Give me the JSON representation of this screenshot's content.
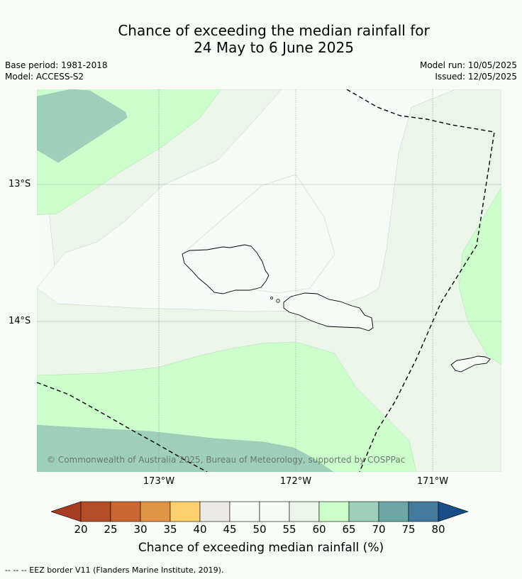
{
  "title": {
    "line1": "Chance of exceeding the median rainfall for",
    "line2": "24 May to 6 June 2025"
  },
  "meta_left": {
    "base_period": "Base period: 1981-2018",
    "model": "Model: ACCESS-S2"
  },
  "meta_right": {
    "model_run": "Model run: 10/05/2025",
    "issued": "Issued: 12/05/2025"
  },
  "map": {
    "copyright": "© Commonwealth of Australia 2025, Bureau of Meteorology, supported by COSPPac",
    "lat_labels": [
      "13°S",
      "14°S"
    ],
    "lon_labels": [
      "173°W",
      "172°W",
      "171°W"
    ],
    "extent": {
      "lon": [
        -173.9,
        -170.5
      ],
      "lat": [
        -15.1,
        -12.3
      ]
    }
  },
  "colorbar": {
    "ticks": [
      "20",
      "25",
      "30",
      "35",
      "40",
      "45",
      "50",
      "55",
      "60",
      "65",
      "70",
      "75",
      "80"
    ],
    "label": "Chance of exceeding median rainfall (%)",
    "colors": {
      "below_20": "#a63d22",
      "20_25": "#b34d27",
      "25_30": "#cc6633",
      "30_35": "#e09445",
      "35_40": "#fdd06e",
      "40_45": "#eceae6",
      "45_50": "#f7fbf7",
      "50_55": "#f7fbf7",
      "55_60": "#ebf5ea",
      "60_65": "#ccffcc",
      "65_70": "#9ecfbb",
      "70_75": "#6ea6a8",
      "75_80": "#447a9c",
      "above_80": "#174e86"
    }
  },
  "footnote": "--  --  -- EEZ border V11 (Flanders Marine Institute, 2019)."
}
